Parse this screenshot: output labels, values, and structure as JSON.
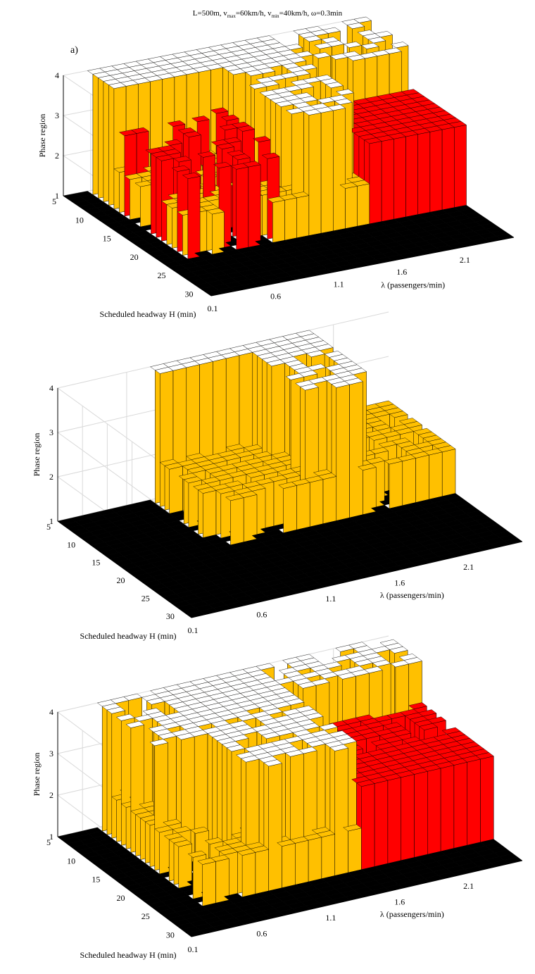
{
  "figure": {
    "title_parts": {
      "L": "L=500m, v",
      "max_sub": "max",
      "mid": "=60km/h, v",
      "min_sub": "min",
      "end": "=40km/h, ω=0.3min"
    }
  },
  "colors": {
    "region1": "#000000",
    "region2": "#ffc000",
    "region3": "#ff0000",
    "region4": "#ffffff",
    "grid": "#d9d9d9",
    "axis": "#000000"
  },
  "chart_data": [
    {
      "type": "surface",
      "panel_label": "a)",
      "xlabel": "λ (passengers/min)",
      "ylabel": "Scheduled headway H (min)",
      "zlabel": "Phase region",
      "x_ticks": [
        "0.1",
        "0.6",
        "1.1",
        "1.6",
        "2.1"
      ],
      "y_ticks": [
        "5",
        "10",
        "15",
        "20",
        "25",
        "30"
      ],
      "z_ticks": [
        "1",
        "2",
        "3",
        "4"
      ],
      "xlim": [
        0.1,
        2.5
      ],
      "ylim": [
        5,
        32
      ],
      "zlim": [
        1,
        4
      ],
      "legend_regions": [
        1,
        2,
        3,
        4
      ]
    },
    {
      "type": "surface",
      "panel_label": "",
      "xlabel": "λ (passengers/min)",
      "ylabel": "Scheduled headway H (min)",
      "zlabel": "Phase region",
      "x_ticks": [
        "0.1",
        "0.6",
        "1.1",
        "1.6",
        "2.1"
      ],
      "y_ticks": [
        "5",
        "10",
        "15",
        "20",
        "25",
        "30"
      ],
      "z_ticks": [
        "1",
        "2",
        "3",
        "4"
      ],
      "xlim": [
        0.1,
        2.5
      ],
      "ylim": [
        5,
        32
      ],
      "zlim": [
        1,
        4
      ]
    },
    {
      "type": "surface",
      "panel_label": "",
      "xlabel": "λ (passengers/min)",
      "ylabel": "Scheduled headway H (min)",
      "zlabel": "Phase region",
      "x_ticks": [
        "0.1",
        "0.6",
        "1.1",
        "1.6",
        "2.1"
      ],
      "y_ticks": [
        "5",
        "10",
        "15",
        "20",
        "25",
        "30"
      ],
      "z_ticks": [
        "1",
        "2",
        "3",
        "4"
      ],
      "xlim": [
        0.1,
        2.5
      ],
      "ylim": [
        5,
        32
      ],
      "zlim": [
        1,
        4
      ]
    }
  ]
}
